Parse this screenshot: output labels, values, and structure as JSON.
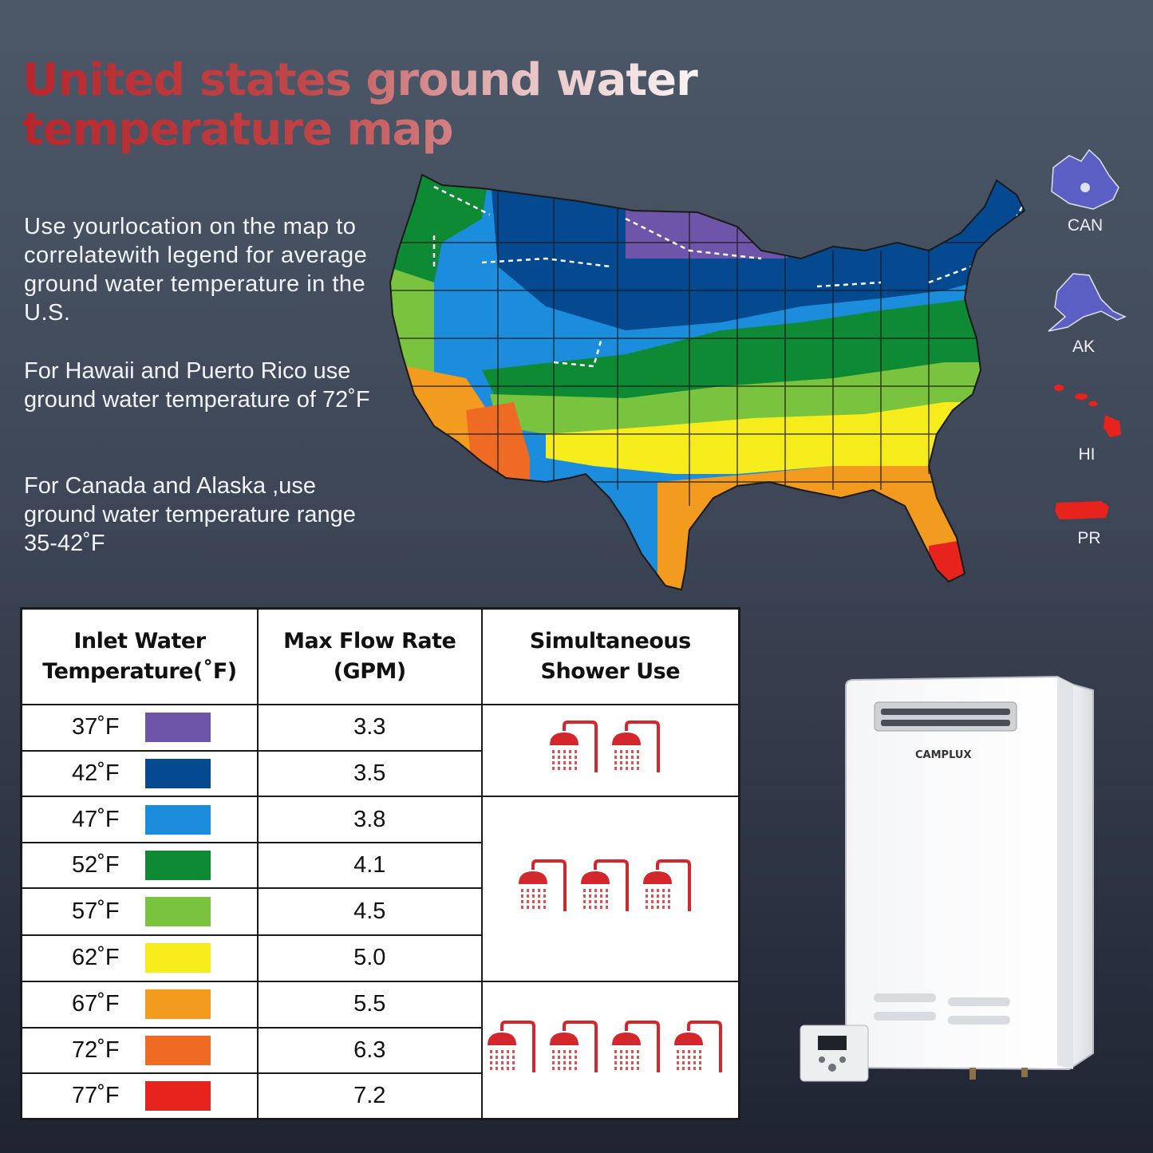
{
  "title": {
    "line1": "United states ground water",
    "line2": "temperature map"
  },
  "description": {
    "p1": "Use yourlocation on the map to correlatewith legend for average ground water temperature in the U.S.",
    "p2": "For Hawaii and Puerto Rico use ground water temperature of 72˚F",
    "p3": "For Canada and Alaska ,use ground water temperature range 35-42˚F"
  },
  "insets": [
    {
      "label": "CAN",
      "color": "#5b5fc4"
    },
    {
      "label": "AK",
      "color": "#5b5fc4"
    },
    {
      "label": "HI",
      "color": "#e8231e"
    },
    {
      "label": "PR",
      "color": "#e8231e"
    }
  ],
  "table": {
    "headers": {
      "temp": "Inlet Water Temperature(˚F)",
      "flow": "Max Flow Rate (GPM)",
      "shower": "Simultaneous Shower Use"
    },
    "rows": [
      {
        "temp": "37˚F",
        "color": "#6e55a9",
        "flow": "3.3"
      },
      {
        "temp": "42˚F",
        "color": "#054a91",
        "flow": "3.5"
      },
      {
        "temp": "47˚F",
        "color": "#1b8ddc",
        "flow": "3.8"
      },
      {
        "temp": "52˚F",
        "color": "#0f8a34",
        "flow": "4.1"
      },
      {
        "temp": "57˚F",
        "color": "#79c33e",
        "flow": "4.5"
      },
      {
        "temp": "62˚F",
        "color": "#f6ec1b",
        "flow": "5.0"
      },
      {
        "temp": "67˚F",
        "color": "#f39b1e",
        "flow": "5.5"
      },
      {
        "temp": "72˚F",
        "color": "#ef6a23",
        "flow": "6.3"
      },
      {
        "temp": "77˚F",
        "color": "#e8231e",
        "flow": "7.2"
      }
    ],
    "shower_groups": [
      {
        "count": 2,
        "rows": 2
      },
      {
        "count": 3,
        "rows": 4
      },
      {
        "count": 4,
        "rows": 3
      }
    ],
    "shower_color": "#d2282d"
  },
  "product": {
    "brand": "CAMPLUX"
  }
}
